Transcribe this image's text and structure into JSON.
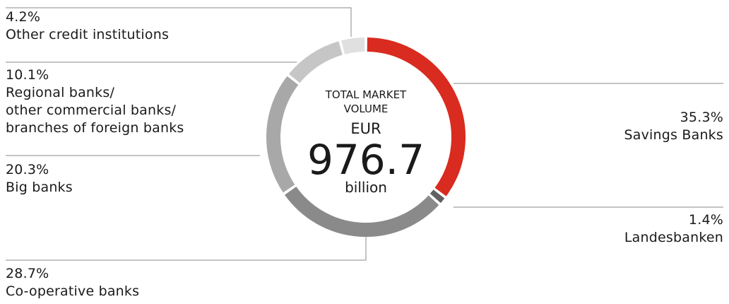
{
  "chart_data": {
    "type": "pie",
    "title": "",
    "center": {
      "line1": "TOTAL MARKET",
      "line2": "VOLUME",
      "currency": "EUR",
      "value": "976.7",
      "unit": "billion"
    },
    "slices": [
      {
        "label": "Savings Banks",
        "value": 35.3,
        "value_label": "35.3%",
        "color": "#d92b1f"
      },
      {
        "label": "Landesbanken",
        "value": 1.4,
        "value_label": "1.4%",
        "color": "#616161"
      },
      {
        "label": "Co-operative banks",
        "value": 28.7,
        "value_label": "28.7%",
        "color": "#8a8a8a"
      },
      {
        "label": "Big banks",
        "value": 20.3,
        "value_label": "20.3%",
        "color": "#a8a8a8"
      },
      {
        "label": "Regional banks/\nother commercial banks/\nbranches of foreign banks",
        "value": 10.1,
        "value_label": "10.1%",
        "color": "#c6c6c6"
      },
      {
        "label": "Other credit institutions",
        "value": 4.2,
        "value_label": "4.2%",
        "color": "#e0e0e0"
      }
    ]
  }
}
